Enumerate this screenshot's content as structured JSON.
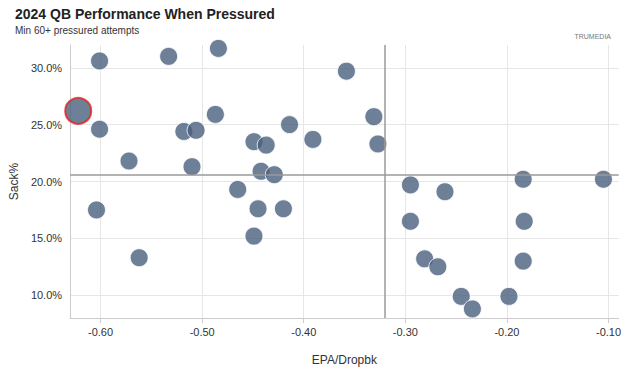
{
  "chart_data": {
    "type": "scatter",
    "title": "2024 QB Performance When Pressured",
    "subtitle": "Min 60+ pressured attempts",
    "logo": "TRUMEDIA",
    "x_label": "EPA/Dropbk",
    "y_label": "Sack%",
    "xlim": [
      -0.63,
      -0.09
    ],
    "xticks": [
      {
        "value": -0.6,
        "label": "-0.60"
      },
      {
        "value": -0.5,
        "label": "-0.50"
      },
      {
        "value": -0.4,
        "label": "-0.40"
      },
      {
        "value": -0.3,
        "label": "-0.30"
      },
      {
        "value": -0.2,
        "label": "-0.20"
      },
      {
        "value": -0.1,
        "label": "-0.10"
      }
    ],
    "ylim": [
      8,
      32
    ],
    "yticks": [
      {
        "value": 10,
        "label": "10.0%"
      },
      {
        "value": 15,
        "label": "15.0%"
      },
      {
        "value": 20,
        "label": "20.0%"
      },
      {
        "value": 25,
        "label": "25.0%"
      },
      {
        "value": 30,
        "label": "30.0%"
      }
    ],
    "grid": true,
    "hlines": [
      20.6
    ],
    "vlines": [
      -0.316
    ],
    "series": [
      {
        "color": "#4a5f7e",
        "marker": "circle",
        "x": [
          -0.601,
          -0.533,
          -0.484,
          -0.358,
          -0.601,
          -0.518,
          -0.506,
          -0.487,
          -0.414,
          -0.449,
          -0.437,
          -0.391,
          -0.331,
          -0.327,
          -0.572,
          -0.51,
          -0.442,
          -0.429,
          -0.465,
          -0.604,
          -0.445,
          -0.42,
          -0.449,
          -0.562,
          -0.295,
          -0.261,
          -0.184,
          -0.105,
          -0.295,
          -0.183,
          -0.281,
          -0.268,
          -0.184,
          -0.245,
          -0.234,
          -0.198
        ],
        "values": [
          30.6,
          31.0,
          31.7,
          29.7,
          24.6,
          24.4,
          24.5,
          25.9,
          25.0,
          23.5,
          23.2,
          23.7,
          25.7,
          23.3,
          21.8,
          21.3,
          20.9,
          20.6,
          19.3,
          17.5,
          17.6,
          17.6,
          15.2,
          13.3,
          19.7,
          19.1,
          20.2,
          20.2,
          16.5,
          16.5,
          13.2,
          12.5,
          13.0,
          9.9,
          8.8,
          9.9
        ]
      },
      {
        "color": "#e0201c",
        "marker": "ring",
        "x": [
          -0.622
        ],
        "values": [
          26.2
        ]
      }
    ]
  }
}
